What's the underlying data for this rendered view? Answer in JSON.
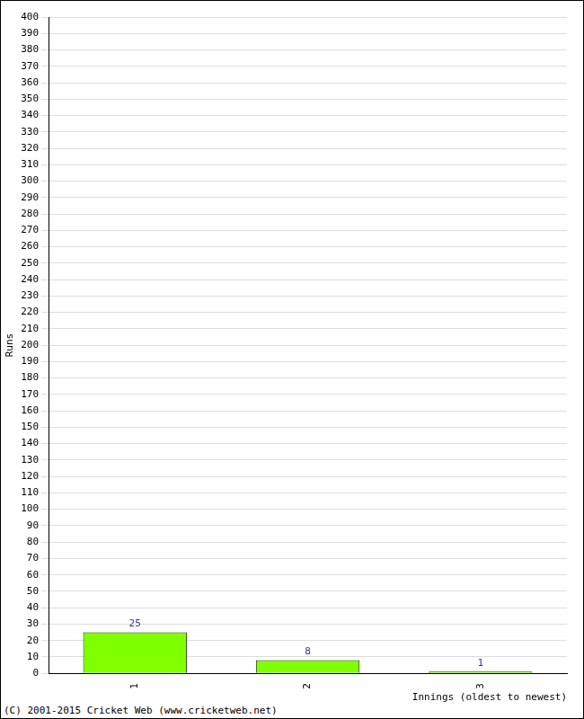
{
  "chart_data": {
    "type": "bar",
    "categories": [
      "1",
      "2",
      "3"
    ],
    "values": [
      25,
      8,
      1
    ],
    "color": "#80ff00",
    "x_label": "Innings (oldest to newest)",
    "y_label": "Runs",
    "annotations": [
      "(C) 2001-2015 Cricket Web (www.cricketweb.net)"
    ],
    "ylim": [
      0,
      400
    ],
    "yticks": [
      0,
      10,
      20,
      30,
      40,
      50,
      60,
      70,
      80,
      90,
      100,
      110,
      120,
      130,
      140,
      150,
      160,
      170,
      180,
      190,
      200,
      210,
      220,
      230,
      240,
      250,
      260,
      270,
      280,
      290,
      300,
      310,
      320,
      330,
      340,
      350,
      360,
      370,
      380,
      390,
      400
    ],
    "grid": true,
    "data_labels": true
  }
}
